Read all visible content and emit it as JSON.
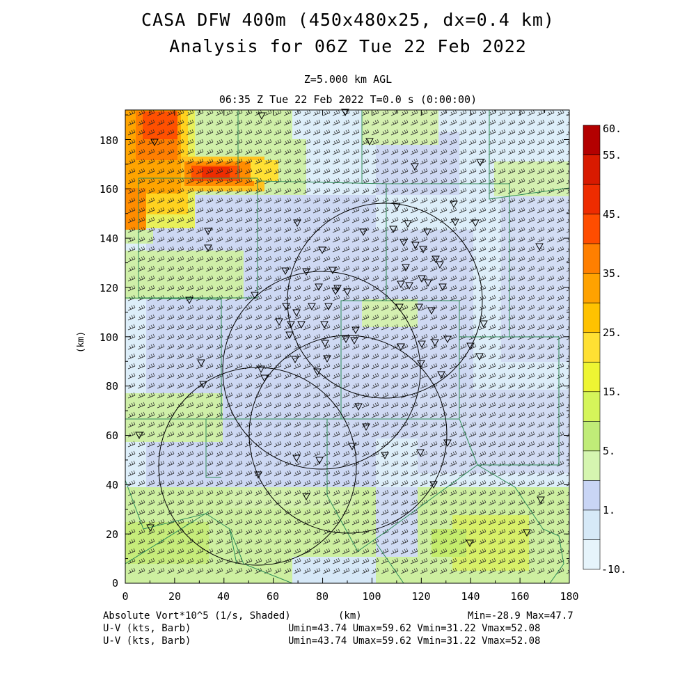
{
  "header": {
    "title_line1": "CASA DFW 400m (450x480x25, dx=0.4 km)",
    "title_line2": "Analysis for 06Z Tue 22 Feb 2022",
    "level": "Z=5.000 km AGL",
    "time": "06:35 Z Tue 22 Feb 2022    T=0.0 s (0:00:00)"
  },
  "axes": {
    "x_ticks": [
      "0",
      "20",
      "40",
      "60",
      "80",
      "100",
      "120",
      "140",
      "160",
      "180"
    ],
    "y_ticks": [
      "0",
      "20",
      "40",
      "60",
      "80",
      "100",
      "120",
      "140",
      "160",
      "180"
    ],
    "x_label": "(km)",
    "y_label": "(km)",
    "x_range": [
      0,
      180
    ],
    "y_range": [
      0,
      192
    ]
  },
  "colorbar": {
    "labels": [
      "60.",
      "55.",
      "45.",
      "35.",
      "25.",
      "15.",
      "5.",
      "1.",
      "-10."
    ],
    "colors": [
      "#b30000",
      "#d81a00",
      "#ee2c00",
      "#ff4d00",
      "#ff7f00",
      "#ffa200",
      "#ffc200",
      "#ffe033",
      "#eef533",
      "#d5f55a",
      "#c0ec78",
      "#d5f5b0",
      "#c9d5f5",
      "#d6e9f7",
      "#e6f4fb"
    ]
  },
  "footer": {
    "left1": "Absolute Vort*10^5 (1/s, Shaded)",
    "mid1": "(km)",
    "right1": "Min=-28.9 Max=47.7",
    "left2": "U-V (kts, Barb)",
    "right2": "Umin=43.74 Umax=59.62 Vmin=31.22 Vmax=52.08",
    "left3": "U-V (kts, Barb)",
    "right3": "Umin=43.74 Umax=59.62 Vmin=31.22 Vmax=52.08"
  },
  "colors": {
    "county_lines": "#2e8b57",
    "radar_rings": "#000000",
    "background_field": "#ddeef9"
  }
}
